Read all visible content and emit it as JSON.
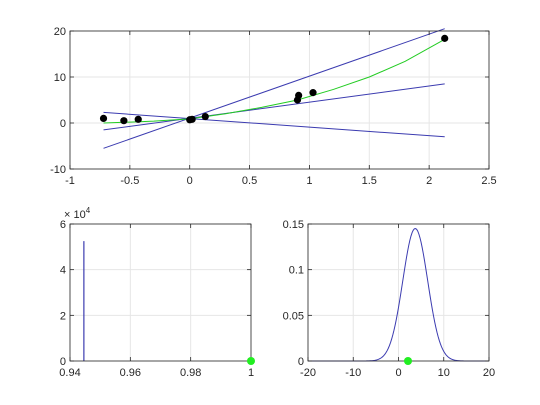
{
  "colors": {
    "fit_line": "#3b3bb0",
    "mean_curve": "#22cc22",
    "points": "#000000",
    "marker": "#22ee22",
    "axis": "#262626",
    "grid": "#e6e6e6"
  },
  "chart_data": [
    {
      "id": "top",
      "type": "scatter",
      "title": "",
      "xlabel": "",
      "ylabel": "",
      "xlim": [
        -1,
        2.5
      ],
      "ylim": [
        -10,
        20
      ],
      "xticks": [
        -1,
        -0.5,
        0,
        0.5,
        1,
        1.5,
        2,
        2.5
      ],
      "xtick_labels": [
        "-1",
        "-0.5",
        "0",
        "0.5",
        "1",
        "1.5",
        "2",
        "2.5"
      ],
      "yticks": [
        -10,
        0,
        10,
        20
      ],
      "ytick_labels": [
        "-10",
        "0",
        "10",
        "20"
      ],
      "grid": true,
      "points": {
        "x": [
          -0.72,
          -0.55,
          -0.43,
          0.0,
          0.02,
          0.13,
          0.9,
          0.91,
          1.03,
          2.13
        ],
        "y": [
          1.0,
          0.5,
          0.8,
          0.7,
          0.8,
          1.4,
          5.0,
          6.0,
          6.6,
          18.4
        ]
      },
      "lines": [
        {
          "x": [
            -0.72,
            2.13
          ],
          "y": [
            -5.5,
            20.5
          ]
        },
        {
          "x": [
            -0.72,
            2.13
          ],
          "y": [
            -1.5,
            8.5
          ]
        },
        {
          "x": [
            -0.72,
            2.13
          ],
          "y": [
            2.3,
            -3.0
          ]
        }
      ],
      "curve": {
        "x": [
          -0.72,
          -0.5,
          -0.3,
          0.0,
          0.3,
          0.6,
          0.9,
          1.2,
          1.5,
          1.8,
          2.13
        ],
        "y": [
          0.0,
          0.2,
          0.4,
          0.9,
          2.0,
          3.4,
          5.0,
          7.3,
          10.0,
          13.4,
          18.2
        ]
      }
    },
    {
      "id": "bottom-left",
      "type": "bar",
      "title": "",
      "xlabel": "",
      "ylabel": "",
      "xlim": [
        0.94,
        1.0
      ],
      "ylim": [
        0,
        60000
      ],
      "xticks": [
        0.94,
        0.96,
        0.98,
        1.0
      ],
      "xtick_labels": [
        "0.94",
        "0.96",
        "0.98",
        "1"
      ],
      "yticks": [
        0,
        20000,
        40000,
        60000
      ],
      "ytick_labels": [
        "0",
        "2",
        "4",
        "6"
      ],
      "y_multiplier": {
        "base": "× 10",
        "exponent": "4"
      },
      "grid": true,
      "bars": {
        "x": [
          0.9446
        ],
        "values": [
          52500
        ]
      },
      "marker": {
        "x": 1.0,
        "y": 0
      }
    },
    {
      "id": "bottom-right",
      "type": "line",
      "title": "",
      "xlabel": "",
      "ylabel": "",
      "xlim": [
        -20,
        20
      ],
      "ylim": [
        0,
        0.15
      ],
      "xticks": [
        -20,
        -10,
        0,
        10,
        20
      ],
      "xtick_labels": [
        "-20",
        "-10",
        "0",
        "10",
        "20"
      ],
      "yticks": [
        0,
        0.05,
        0.1,
        0.15
      ],
      "ytick_labels": [
        "0",
        "0.05",
        "0.1",
        "0.15"
      ],
      "grid": true,
      "series": [
        {
          "mean": 3.7,
          "sd": 2.75,
          "x_range": [
            -20,
            20
          ]
        }
      ],
      "marker": {
        "x": 2.1,
        "y": 0
      }
    }
  ]
}
